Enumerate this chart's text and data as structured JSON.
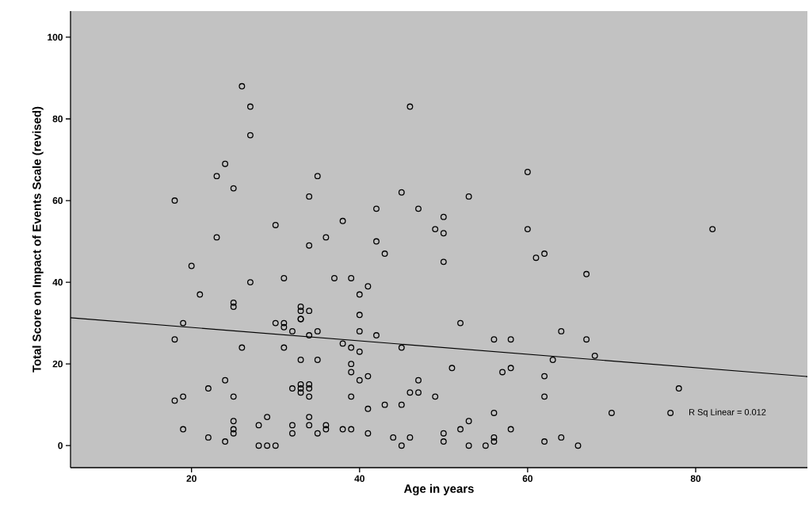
{
  "chart_data": {
    "type": "scatter",
    "xlabel": "Age in years",
    "ylabel": "Total Score on Impact of Events Scale (revised)",
    "xlim": [
      5.6,
      93.3
    ],
    "ylim": [
      -5.4,
      106.4
    ],
    "xticks": [
      20,
      40,
      60,
      80
    ],
    "yticks": [
      0,
      20,
      40,
      60,
      80,
      100
    ],
    "annotations": [
      "R Sq Linear = 0.012"
    ],
    "series": [
      {
        "marker": "circle",
        "color": "#000000",
        "x": [
          26,
          27,
          27,
          24,
          23,
          25,
          18,
          23,
          20,
          21,
          27,
          18,
          19,
          18,
          19,
          19,
          22,
          22,
          24,
          24,
          25,
          25,
          25,
          25,
          25,
          25,
          26,
          28,
          28,
          29,
          29,
          30,
          30,
          30,
          31,
          31,
          31,
          31,
          32,
          32,
          32,
          32,
          33,
          33,
          33,
          33,
          33,
          33,
          33,
          33,
          34,
          34,
          34,
          34,
          34,
          34,
          34,
          34,
          34,
          35,
          35,
          35,
          35,
          36,
          36,
          36,
          37,
          38,
          38,
          38,
          39,
          39,
          39,
          39,
          39,
          39,
          40,
          40,
          40,
          40,
          40,
          41,
          41,
          41,
          41,
          42,
          42,
          42,
          43,
          43,
          44,
          45,
          45,
          45,
          45,
          46,
          46,
          46,
          47,
          47,
          47,
          49,
          49,
          50,
          50,
          50,
          50,
          50,
          51,
          52,
          52,
          53,
          53,
          53,
          55,
          56,
          56,
          56,
          56,
          57,
          58,
          58,
          58,
          60,
          60,
          61,
          62,
          62,
          62,
          62,
          63,
          64,
          64,
          66,
          67,
          67,
          68,
          70,
          77,
          78,
          82
        ],
        "values": [
          88,
          83,
          76,
          69,
          66,
          63,
          60,
          51,
          44,
          37,
          40,
          26,
          30,
          11,
          12,
          4,
          14,
          2,
          16,
          1,
          35,
          34,
          12,
          6,
          4,
          3,
          24,
          5,
          0,
          7,
          0,
          0,
          54,
          30,
          41,
          30,
          29,
          24,
          28,
          14,
          5,
          3,
          34,
          33,
          31,
          31,
          21,
          15,
          14,
          13,
          61,
          49,
          33,
          27,
          15,
          14,
          12,
          7,
          5,
          66,
          28,
          21,
          3,
          51,
          5,
          4,
          41,
          55,
          25,
          4,
          41,
          24,
          20,
          18,
          12,
          4,
          37,
          32,
          28,
          23,
          16,
          39,
          17,
          9,
          3,
          58,
          50,
          27,
          47,
          10,
          2,
          62,
          24,
          10,
          0,
          83,
          13,
          2,
          58,
          16,
          13,
          53,
          12,
          56,
          52,
          45,
          3,
          1,
          19,
          30,
          4,
          61,
          6,
          0,
          0,
          26,
          8,
          2,
          1,
          18,
          26,
          19,
          4,
          67,
          53,
          46,
          47,
          17,
          12,
          1,
          21,
          28,
          2,
          0,
          42,
          26,
          22,
          8,
          8,
          14,
          53
        ]
      },
      {
        "type": "line",
        "color": "#000000",
        "x": [
          5.6,
          93.3
        ],
        "values": [
          31.3,
          16.9
        ]
      }
    ]
  }
}
